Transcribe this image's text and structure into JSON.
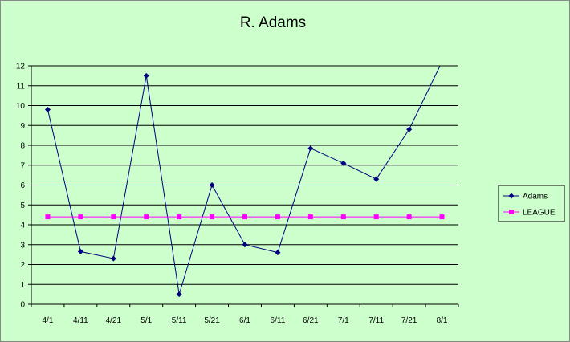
{
  "chart_data": {
    "type": "line",
    "title": "R. Adams",
    "xlabel": "",
    "ylabel": "",
    "categories": [
      "4/1",
      "4/11",
      "4/21",
      "5/1",
      "5/11",
      "5/21",
      "6/1",
      "6/11",
      "6/21",
      "7/1",
      "7/11",
      "7/21",
      "8/1"
    ],
    "ylim": [
      0,
      12
    ],
    "yticks": [
      0,
      1,
      2,
      3,
      4,
      5,
      6,
      7,
      8,
      9,
      10,
      11,
      12
    ],
    "grid": "horizontal",
    "legend_position": "right",
    "series": [
      {
        "name": "Adams",
        "color": "#000080",
        "marker": "diamond",
        "values": [
          9.8,
          2.65,
          2.3,
          11.5,
          0.5,
          6.0,
          3.0,
          2.6,
          7.85,
          7.1,
          6.3,
          8.8,
          12.2
        ]
      },
      {
        "name": "LEAGUE",
        "color": "#ff00ff",
        "marker": "square",
        "values": [
          4.4,
          4.4,
          4.4,
          4.4,
          4.4,
          4.4,
          4.4,
          4.4,
          4.4,
          4.4,
          4.4,
          4.4,
          4.4
        ]
      }
    ]
  },
  "colors": {
    "background": "#ccffcc",
    "plot_area": "#ccffcc",
    "grid": "#000000"
  }
}
